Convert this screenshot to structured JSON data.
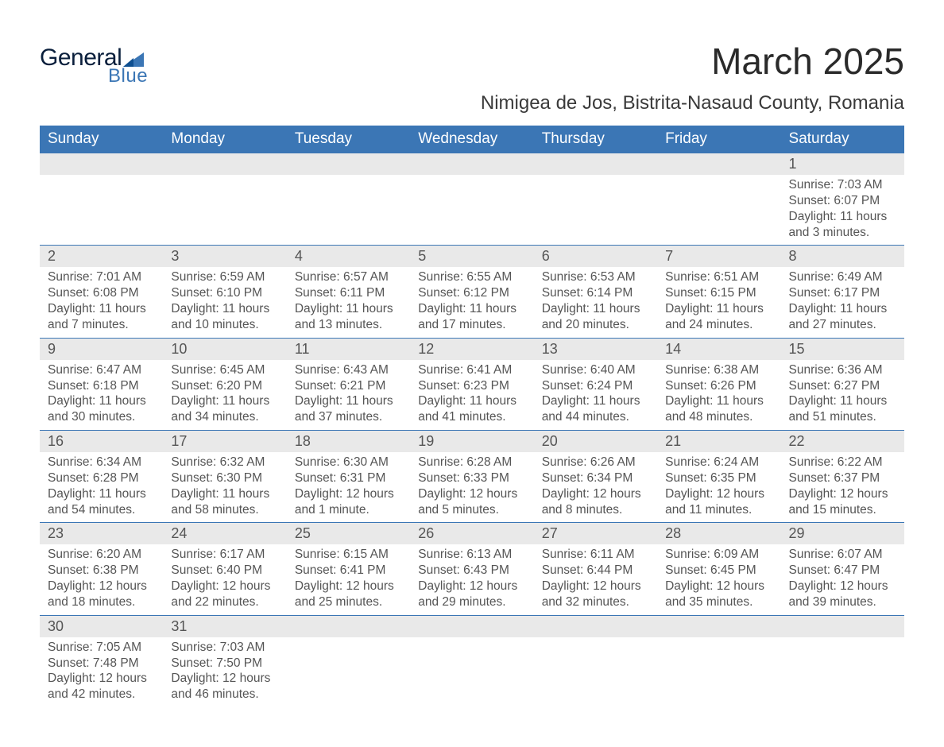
{
  "logo": {
    "text_main": "General",
    "text_sub": "Blue",
    "tri_color": "#3b76b5"
  },
  "title": "March 2025",
  "location": "Nimigea de Jos, Bistrita-Nasaud County, Romania",
  "colors": {
    "header_bg": "#3b76b5",
    "header_text": "#ffffff",
    "daynum_bg": "#e9e9e9",
    "row_border": "#3b76b5",
    "body_text": "#555555"
  },
  "weekdays": [
    "Sunday",
    "Monday",
    "Tuesday",
    "Wednesday",
    "Thursday",
    "Friday",
    "Saturday"
  ],
  "weeks": [
    [
      null,
      null,
      null,
      null,
      null,
      null,
      {
        "n": "1",
        "sr": "Sunrise: 7:03 AM",
        "ss": "Sunset: 6:07 PM",
        "d1": "Daylight: 11 hours",
        "d2": "and 3 minutes."
      }
    ],
    [
      {
        "n": "2",
        "sr": "Sunrise: 7:01 AM",
        "ss": "Sunset: 6:08 PM",
        "d1": "Daylight: 11 hours",
        "d2": "and 7 minutes."
      },
      {
        "n": "3",
        "sr": "Sunrise: 6:59 AM",
        "ss": "Sunset: 6:10 PM",
        "d1": "Daylight: 11 hours",
        "d2": "and 10 minutes."
      },
      {
        "n": "4",
        "sr": "Sunrise: 6:57 AM",
        "ss": "Sunset: 6:11 PM",
        "d1": "Daylight: 11 hours",
        "d2": "and 13 minutes."
      },
      {
        "n": "5",
        "sr": "Sunrise: 6:55 AM",
        "ss": "Sunset: 6:12 PM",
        "d1": "Daylight: 11 hours",
        "d2": "and 17 minutes."
      },
      {
        "n": "6",
        "sr": "Sunrise: 6:53 AM",
        "ss": "Sunset: 6:14 PM",
        "d1": "Daylight: 11 hours",
        "d2": "and 20 minutes."
      },
      {
        "n": "7",
        "sr": "Sunrise: 6:51 AM",
        "ss": "Sunset: 6:15 PM",
        "d1": "Daylight: 11 hours",
        "d2": "and 24 minutes."
      },
      {
        "n": "8",
        "sr": "Sunrise: 6:49 AM",
        "ss": "Sunset: 6:17 PM",
        "d1": "Daylight: 11 hours",
        "d2": "and 27 minutes."
      }
    ],
    [
      {
        "n": "9",
        "sr": "Sunrise: 6:47 AM",
        "ss": "Sunset: 6:18 PM",
        "d1": "Daylight: 11 hours",
        "d2": "and 30 minutes."
      },
      {
        "n": "10",
        "sr": "Sunrise: 6:45 AM",
        "ss": "Sunset: 6:20 PM",
        "d1": "Daylight: 11 hours",
        "d2": "and 34 minutes."
      },
      {
        "n": "11",
        "sr": "Sunrise: 6:43 AM",
        "ss": "Sunset: 6:21 PM",
        "d1": "Daylight: 11 hours",
        "d2": "and 37 minutes."
      },
      {
        "n": "12",
        "sr": "Sunrise: 6:41 AM",
        "ss": "Sunset: 6:23 PM",
        "d1": "Daylight: 11 hours",
        "d2": "and 41 minutes."
      },
      {
        "n": "13",
        "sr": "Sunrise: 6:40 AM",
        "ss": "Sunset: 6:24 PM",
        "d1": "Daylight: 11 hours",
        "d2": "and 44 minutes."
      },
      {
        "n": "14",
        "sr": "Sunrise: 6:38 AM",
        "ss": "Sunset: 6:26 PM",
        "d1": "Daylight: 11 hours",
        "d2": "and 48 minutes."
      },
      {
        "n": "15",
        "sr": "Sunrise: 6:36 AM",
        "ss": "Sunset: 6:27 PM",
        "d1": "Daylight: 11 hours",
        "d2": "and 51 minutes."
      }
    ],
    [
      {
        "n": "16",
        "sr": "Sunrise: 6:34 AM",
        "ss": "Sunset: 6:28 PM",
        "d1": "Daylight: 11 hours",
        "d2": "and 54 minutes."
      },
      {
        "n": "17",
        "sr": "Sunrise: 6:32 AM",
        "ss": "Sunset: 6:30 PM",
        "d1": "Daylight: 11 hours",
        "d2": "and 58 minutes."
      },
      {
        "n": "18",
        "sr": "Sunrise: 6:30 AM",
        "ss": "Sunset: 6:31 PM",
        "d1": "Daylight: 12 hours",
        "d2": "and 1 minute."
      },
      {
        "n": "19",
        "sr": "Sunrise: 6:28 AM",
        "ss": "Sunset: 6:33 PM",
        "d1": "Daylight: 12 hours",
        "d2": "and 5 minutes."
      },
      {
        "n": "20",
        "sr": "Sunrise: 6:26 AM",
        "ss": "Sunset: 6:34 PM",
        "d1": "Daylight: 12 hours",
        "d2": "and 8 minutes."
      },
      {
        "n": "21",
        "sr": "Sunrise: 6:24 AM",
        "ss": "Sunset: 6:35 PM",
        "d1": "Daylight: 12 hours",
        "d2": "and 11 minutes."
      },
      {
        "n": "22",
        "sr": "Sunrise: 6:22 AM",
        "ss": "Sunset: 6:37 PM",
        "d1": "Daylight: 12 hours",
        "d2": "and 15 minutes."
      }
    ],
    [
      {
        "n": "23",
        "sr": "Sunrise: 6:20 AM",
        "ss": "Sunset: 6:38 PM",
        "d1": "Daylight: 12 hours",
        "d2": "and 18 minutes."
      },
      {
        "n": "24",
        "sr": "Sunrise: 6:17 AM",
        "ss": "Sunset: 6:40 PM",
        "d1": "Daylight: 12 hours",
        "d2": "and 22 minutes."
      },
      {
        "n": "25",
        "sr": "Sunrise: 6:15 AM",
        "ss": "Sunset: 6:41 PM",
        "d1": "Daylight: 12 hours",
        "d2": "and 25 minutes."
      },
      {
        "n": "26",
        "sr": "Sunrise: 6:13 AM",
        "ss": "Sunset: 6:43 PM",
        "d1": "Daylight: 12 hours",
        "d2": "and 29 minutes."
      },
      {
        "n": "27",
        "sr": "Sunrise: 6:11 AM",
        "ss": "Sunset: 6:44 PM",
        "d1": "Daylight: 12 hours",
        "d2": "and 32 minutes."
      },
      {
        "n": "28",
        "sr": "Sunrise: 6:09 AM",
        "ss": "Sunset: 6:45 PM",
        "d1": "Daylight: 12 hours",
        "d2": "and 35 minutes."
      },
      {
        "n": "29",
        "sr": "Sunrise: 6:07 AM",
        "ss": "Sunset: 6:47 PM",
        "d1": "Daylight: 12 hours",
        "d2": "and 39 minutes."
      }
    ],
    [
      {
        "n": "30",
        "sr": "Sunrise: 7:05 AM",
        "ss": "Sunset: 7:48 PM",
        "d1": "Daylight: 12 hours",
        "d2": "and 42 minutes."
      },
      {
        "n": "31",
        "sr": "Sunrise: 7:03 AM",
        "ss": "Sunset: 7:50 PM",
        "d1": "Daylight: 12 hours",
        "d2": "and 46 minutes."
      },
      null,
      null,
      null,
      null,
      null
    ]
  ]
}
